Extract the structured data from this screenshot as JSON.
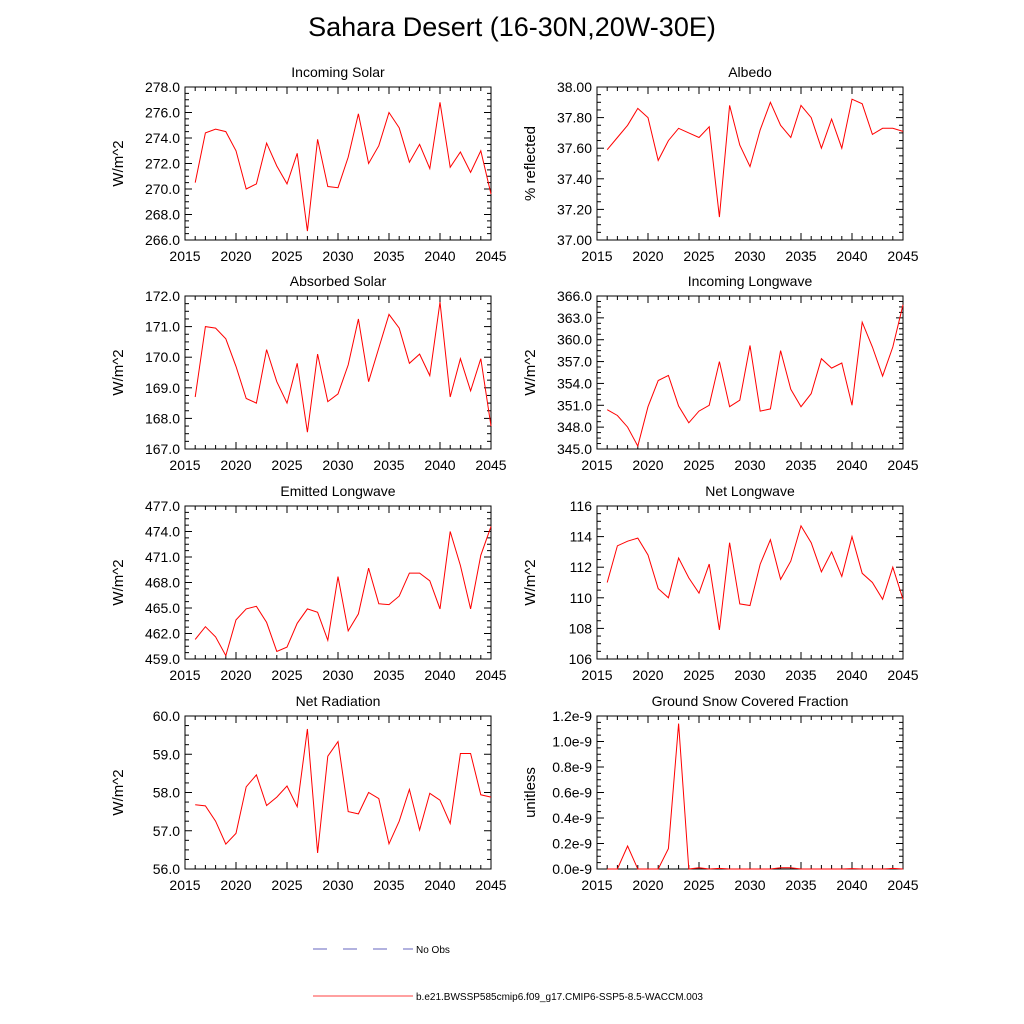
{
  "title": "Sahara Desert (16-30N,20W-30E)",
  "colors": {
    "model": "#ff0000",
    "obs": "#3333aa",
    "axis": "#000000"
  },
  "legend": {
    "items": [
      {
        "label": "No Obs",
        "style": "dashed",
        "color": "#3333aa"
      },
      {
        "label": "b.e21.BWSSP585cmip6.f09_g17.CMIP6-SSP5-8.5-WACCM.003",
        "style": "solid",
        "color": "#ff0000"
      }
    ]
  },
  "chart_data": [
    {
      "type": "line",
      "title": "Incoming Solar",
      "ylabel": "W/m^2",
      "ylim": [
        266,
        278
      ],
      "yticks": [
        266,
        268,
        270,
        272,
        274,
        276,
        278
      ],
      "ytick_labels": [
        "266.0",
        "268.0",
        "270.0",
        "272.0",
        "274.0",
        "276.0",
        "278.0"
      ],
      "xlim": [
        2015,
        2045
      ],
      "xticks": [
        "2015",
        "2020",
        "2025",
        "2030",
        "2035",
        "2040",
        "2045"
      ],
      "x": [
        2016,
        2017,
        2018,
        2019,
        2020,
        2021,
        2022,
        2023,
        2024,
        2025,
        2026,
        2027,
        2028,
        2029,
        2030,
        2031,
        2032,
        2033,
        2034,
        2035,
        2036,
        2037,
        2038,
        2039,
        2040,
        2041,
        2042,
        2043,
        2044,
        2045
      ],
      "series": [
        {
          "name": "b.e21.BWSSP585cmip6.f09_g17.CMIP6-SSP5-8.5-WACCM.003",
          "values": [
            270.5,
            274.4,
            274.7,
            274.5,
            273.0,
            270.0,
            270.4,
            273.6,
            271.8,
            270.4,
            272.8,
            266.7,
            273.9,
            270.2,
            270.1,
            272.5,
            275.9,
            272.0,
            273.4,
            276.0,
            274.8,
            272.1,
            273.5,
            271.6,
            276.8,
            271.7,
            272.9,
            271.3,
            273.0,
            269.6
          ]
        }
      ]
    },
    {
      "type": "line",
      "title": "Albedo",
      "ylabel": "% reflected",
      "ylim": [
        37.0,
        38.0
      ],
      "yticks": [
        37.0,
        37.2,
        37.4,
        37.6,
        37.8,
        38.0
      ],
      "ytick_labels": [
        "37.00",
        "37.20",
        "37.40",
        "37.60",
        "37.80",
        "38.00"
      ],
      "xlim": [
        2015,
        2045
      ],
      "xticks": [
        "2015",
        "2020",
        "2025",
        "2030",
        "2035",
        "2040",
        "2045"
      ],
      "x": [
        2016,
        2017,
        2018,
        2019,
        2020,
        2021,
        2022,
        2023,
        2024,
        2025,
        2026,
        2027,
        2028,
        2029,
        2030,
        2031,
        2032,
        2033,
        2034,
        2035,
        2036,
        2037,
        2038,
        2039,
        2040,
        2041,
        2042,
        2043,
        2044,
        2045
      ],
      "series": [
        {
          "name": "b.e21.BWSSP585cmip6.f09_g17.CMIP6-SSP5-8.5-WACCM.003",
          "values": [
            37.59,
            37.67,
            37.75,
            37.86,
            37.8,
            37.52,
            37.65,
            37.73,
            37.7,
            37.67,
            37.74,
            37.15,
            37.88,
            37.62,
            37.48,
            37.72,
            37.9,
            37.75,
            37.67,
            37.88,
            37.8,
            37.6,
            37.79,
            37.6,
            37.92,
            37.89,
            37.69,
            37.73,
            37.73,
            37.71
          ]
        }
      ]
    },
    {
      "type": "line",
      "title": "Absorbed Solar",
      "ylabel": "W/m^2",
      "ylim": [
        167.0,
        172.0
      ],
      "yticks": [
        167,
        168,
        169,
        170,
        171,
        172
      ],
      "ytick_labels": [
        "167.0",
        "168.0",
        "169.0",
        "170.0",
        "171.0",
        "172.0"
      ],
      "xlim": [
        2015,
        2045
      ],
      "xticks": [
        "2015",
        "2020",
        "2025",
        "2030",
        "2035",
        "2040",
        "2045"
      ],
      "x": [
        2016,
        2017,
        2018,
        2019,
        2020,
        2021,
        2022,
        2023,
        2024,
        2025,
        2026,
        2027,
        2028,
        2029,
        2030,
        2031,
        2032,
        2033,
        2034,
        2035,
        2036,
        2037,
        2038,
        2039,
        2040,
        2041,
        2042,
        2043,
        2044,
        2045
      ],
      "series": [
        {
          "name": "b.e21.BWSSP585cmip6.f09_g17.CMIP6-SSP5-8.5-WACCM.003",
          "values": [
            168.7,
            171.0,
            170.95,
            170.6,
            169.7,
            168.65,
            168.5,
            170.25,
            169.2,
            168.5,
            169.8,
            167.55,
            170.1,
            168.55,
            168.8,
            169.75,
            171.25,
            169.2,
            170.3,
            171.4,
            170.95,
            169.8,
            170.1,
            169.4,
            171.8,
            168.7,
            169.95,
            168.9,
            169.95,
            167.75
          ]
        }
      ]
    },
    {
      "type": "line",
      "title": "Incoming Longwave",
      "ylabel": "W/m^2",
      "ylim": [
        345.0,
        366.0
      ],
      "yticks": [
        345,
        348,
        351,
        354,
        357,
        360,
        363,
        366
      ],
      "ytick_labels": [
        "345.0",
        "348.0",
        "351.0",
        "354.0",
        "357.0",
        "360.0",
        "363.0",
        "366.0"
      ],
      "xlim": [
        2015,
        2045
      ],
      "xticks": [
        "2015",
        "2020",
        "2025",
        "2030",
        "2035",
        "2040",
        "2045"
      ],
      "x": [
        2016,
        2017,
        2018,
        2019,
        2020,
        2021,
        2022,
        2023,
        2024,
        2025,
        2026,
        2027,
        2028,
        2029,
        2030,
        2031,
        2032,
        2033,
        2034,
        2035,
        2036,
        2037,
        2038,
        2039,
        2040,
        2041,
        2042,
        2043,
        2044,
        2045
      ],
      "series": [
        {
          "name": "b.e21.BWSSP585cmip6.f09_g17.CMIP6-SSP5-8.5-WACCM.003",
          "values": [
            350.4,
            349.6,
            348.0,
            345.4,
            350.8,
            354.4,
            355.1,
            350.9,
            348.6,
            350.2,
            351.0,
            357.0,
            350.8,
            351.7,
            359.2,
            350.2,
            350.5,
            358.5,
            353.2,
            350.8,
            352.6,
            357.4,
            356.1,
            356.8,
            351.0,
            362.4,
            359.0,
            355.0,
            359.0,
            364.8
          ]
        }
      ]
    },
    {
      "type": "line",
      "title": "Emitted Longwave",
      "ylabel": "W/m^2",
      "ylim": [
        459.0,
        477.0
      ],
      "yticks": [
        459,
        462,
        465,
        468,
        471,
        474,
        477
      ],
      "ytick_labels": [
        "459.0",
        "462.0",
        "465.0",
        "468.0",
        "471.0",
        "474.0",
        "477.0"
      ],
      "xlim": [
        2015,
        2045
      ],
      "xticks": [
        "2015",
        "2020",
        "2025",
        "2030",
        "2035",
        "2040",
        "2045"
      ],
      "x": [
        2016,
        2017,
        2018,
        2019,
        2020,
        2021,
        2022,
        2023,
        2024,
        2025,
        2026,
        2027,
        2028,
        2029,
        2030,
        2031,
        2032,
        2033,
        2034,
        2035,
        2036,
        2037,
        2038,
        2039,
        2040,
        2041,
        2042,
        2043,
        2044,
        2045
      ],
      "series": [
        {
          "name": "b.e21.BWSSP585cmip6.f09_g17.CMIP6-SSP5-8.5-WACCM.003",
          "values": [
            461.3,
            462.8,
            461.6,
            459.4,
            463.6,
            464.9,
            465.2,
            463.3,
            459.9,
            460.4,
            463.2,
            464.9,
            464.5,
            461.2,
            468.7,
            462.3,
            464.3,
            469.7,
            465.5,
            465.4,
            466.4,
            469.1,
            469.1,
            468.2,
            464.9,
            474.0,
            470.0,
            464.9,
            471.2,
            474.6
          ]
        }
      ]
    },
    {
      "type": "line",
      "title": "Net Longwave",
      "ylabel": "W/m^2",
      "ylim": [
        106,
        116
      ],
      "yticks": [
        106,
        108,
        110,
        112,
        114,
        116
      ],
      "ytick_labels": [
        "106",
        "108",
        "110",
        "112",
        "114",
        "116"
      ],
      "xlim": [
        2015,
        2045
      ],
      "xticks": [
        "2015",
        "2020",
        "2025",
        "2030",
        "2035",
        "2040",
        "2045"
      ],
      "x": [
        2016,
        2017,
        2018,
        2019,
        2020,
        2021,
        2022,
        2023,
        2024,
        2025,
        2026,
        2027,
        2028,
        2029,
        2030,
        2031,
        2032,
        2033,
        2034,
        2035,
        2036,
        2037,
        2038,
        2039,
        2040,
        2041,
        2042,
        2043,
        2044,
        2045
      ],
      "series": [
        {
          "name": "b.e21.BWSSP585cmip6.f09_g17.CMIP6-SSP5-8.5-WACCM.003",
          "values": [
            111.0,
            113.4,
            113.7,
            113.9,
            112.8,
            110.6,
            110.0,
            112.6,
            111.3,
            110.3,
            112.2,
            107.9,
            113.6,
            109.6,
            109.5,
            112.2,
            113.8,
            111.2,
            112.4,
            114.7,
            113.6,
            111.7,
            113.0,
            111.4,
            114.0,
            111.6,
            111.0,
            109.9,
            112.0,
            109.9
          ]
        }
      ]
    },
    {
      "type": "line",
      "title": "Net Radiation",
      "ylabel": "W/m^2",
      "ylim": [
        56.0,
        60.0
      ],
      "yticks": [
        56,
        57,
        58,
        59,
        60
      ],
      "ytick_labels": [
        "56.0",
        "57.0",
        "58.0",
        "59.0",
        "60.0"
      ],
      "xlim": [
        2015,
        2045
      ],
      "xticks": [
        "2015",
        "2020",
        "2025",
        "2030",
        "2035",
        "2040",
        "2045"
      ],
      "x": [
        2016,
        2017,
        2018,
        2019,
        2020,
        2021,
        2022,
        2023,
        2024,
        2025,
        2026,
        2027,
        2028,
        2029,
        2030,
        2031,
        2032,
        2033,
        2034,
        2035,
        2036,
        2037,
        2038,
        2039,
        2040,
        2041,
        2042,
        2043,
        2044,
        2045
      ],
      "series": [
        {
          "name": "b.e21.BWSSP585cmip6.f09_g17.CMIP6-SSP5-8.5-WACCM.003",
          "values": [
            57.68,
            57.65,
            57.25,
            56.65,
            56.93,
            58.15,
            58.46,
            57.66,
            57.88,
            58.17,
            57.63,
            59.66,
            56.42,
            58.95,
            59.33,
            57.5,
            57.44,
            58.0,
            57.84,
            56.66,
            57.25,
            58.08,
            57.02,
            57.98,
            57.8,
            57.19,
            59.02,
            59.02,
            57.94,
            57.88
          ]
        }
      ]
    },
    {
      "type": "line",
      "title": "Ground Snow Covered Fraction",
      "ylabel": "unitless",
      "ylim": [
        0.0,
        1.2
      ],
      "yticks": [
        0.0,
        0.2,
        0.4,
        0.6,
        0.8,
        1.0,
        1.2
      ],
      "ytick_labels": [
        "0.0e-9",
        "0.2e-9",
        "0.4e-9",
        "0.6e-9",
        "0.8e-9",
        "1.0e-9",
        "1.2e-9"
      ],
      "value_scale": "1e-9",
      "xlim": [
        2015,
        2045
      ],
      "xticks": [
        "2015",
        "2020",
        "2025",
        "2030",
        "2035",
        "2040",
        "2045"
      ],
      "x": [
        2016,
        2017,
        2018,
        2019,
        2020,
        2021,
        2022,
        2023,
        2024,
        2025,
        2026,
        2027,
        2028,
        2029,
        2030,
        2031,
        2032,
        2033,
        2034,
        2035,
        2036,
        2037,
        2038,
        2039,
        2040,
        2041,
        2042,
        2043,
        2044,
        2045
      ],
      "series": [
        {
          "name": "b.e21.BWSSP585cmip6.f09_g17.CMIP6-SSP5-8.5-WACCM.003",
          "values": [
            0.0,
            0.0,
            0.18,
            0.0,
            0.0,
            0.0,
            0.16,
            1.14,
            0.0,
            0.01,
            0.0,
            0.005,
            0.0,
            0.0,
            0.0,
            0.0,
            0.0,
            0.01,
            0.01,
            0.0,
            0.0,
            0.0,
            0.0,
            0.0,
            0.003,
            0.0,
            0.0,
            0.0,
            0.005,
            0.0
          ]
        }
      ]
    }
  ]
}
